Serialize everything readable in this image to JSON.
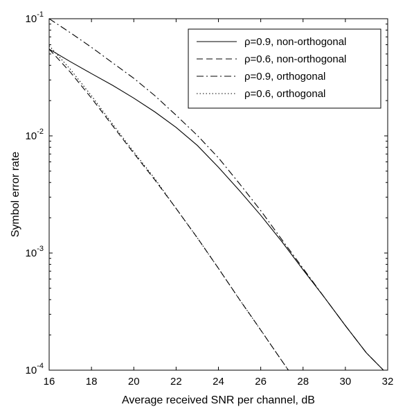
{
  "chart_data": {
    "type": "line",
    "xlabel": "Average received SNR per channel, dB",
    "ylabel": "Symbol error rate",
    "xlim": [
      16,
      32
    ],
    "ylim": [
      0.0001,
      0.1
    ],
    "yscale": "log",
    "grid": false,
    "legend_position": "top-right",
    "x_ticks": [
      16,
      18,
      20,
      22,
      24,
      26,
      28,
      30,
      32
    ],
    "x_tick_labels": [
      "16",
      "18",
      "20",
      "22",
      "24",
      "26",
      "28",
      "30",
      "32"
    ],
    "y_ticks": [
      {
        "value": 0.1,
        "base": "10",
        "exp": "-1"
      },
      {
        "value": 0.01,
        "base": "10",
        "exp": "-2"
      },
      {
        "value": 0.001,
        "base": "10",
        "exp": "-3"
      },
      {
        "value": 0.0001,
        "base": "10",
        "exp": "-4"
      }
    ],
    "series": [
      {
        "name": "ρ=0.9, non-orthogonal",
        "style": "solid",
        "color": "#000000",
        "x": [
          16,
          17,
          18,
          19,
          20,
          21,
          22,
          23,
          24,
          25,
          26,
          27,
          28,
          29,
          30,
          31,
          31.8
        ],
        "y": [
          0.055,
          0.043,
          0.034,
          0.027,
          0.021,
          0.016,
          0.0118,
          0.0083,
          0.0054,
          0.0034,
          0.0021,
          0.00125,
          0.00072,
          0.00042,
          0.00024,
          0.00014,
          0.0001
        ]
      },
      {
        "name": "ρ=0.6, non-orthogonal",
        "style": "dashed",
        "color": "#000000",
        "x": [
          16,
          17,
          18,
          19,
          20,
          21,
          22,
          23,
          24,
          25,
          26,
          27,
          28,
          28.2
        ],
        "y": [
          0.055,
          0.035,
          0.021,
          0.0122,
          0.0071,
          0.0042,
          0.0024,
          0.00135,
          0.00074,
          0.0004,
          0.00022,
          0.00012,
          6.6e-05,
          0.0001
        ]
      },
      {
        "name": "ρ=0.9, orthogonal",
        "style": "dash-dot",
        "color": "#000000",
        "x": [
          16,
          17,
          18,
          19,
          20,
          21,
          22,
          23,
          24,
          25,
          26,
          27,
          28,
          29,
          30,
          31,
          31.8
        ],
        "y": [
          0.1,
          0.076,
          0.057,
          0.042,
          0.031,
          0.022,
          0.015,
          0.0101,
          0.0065,
          0.0039,
          0.0023,
          0.0013,
          0.00074,
          0.00042,
          0.00024,
          0.00014,
          0.0001
        ]
      },
      {
        "name": "ρ=0.6, orthogonal",
        "style": "dotted",
        "color": "#000000",
        "x": [
          16,
          17,
          18,
          19,
          20,
          21,
          22,
          23,
          24,
          25,
          26,
          27,
          28,
          28.2
        ],
        "y": [
          0.059,
          0.037,
          0.022,
          0.0126,
          0.0073,
          0.0043,
          0.0024,
          0.00135,
          0.00074,
          0.0004,
          0.00022,
          0.00012,
          6.6e-05,
          0.0001
        ]
      }
    ]
  }
}
